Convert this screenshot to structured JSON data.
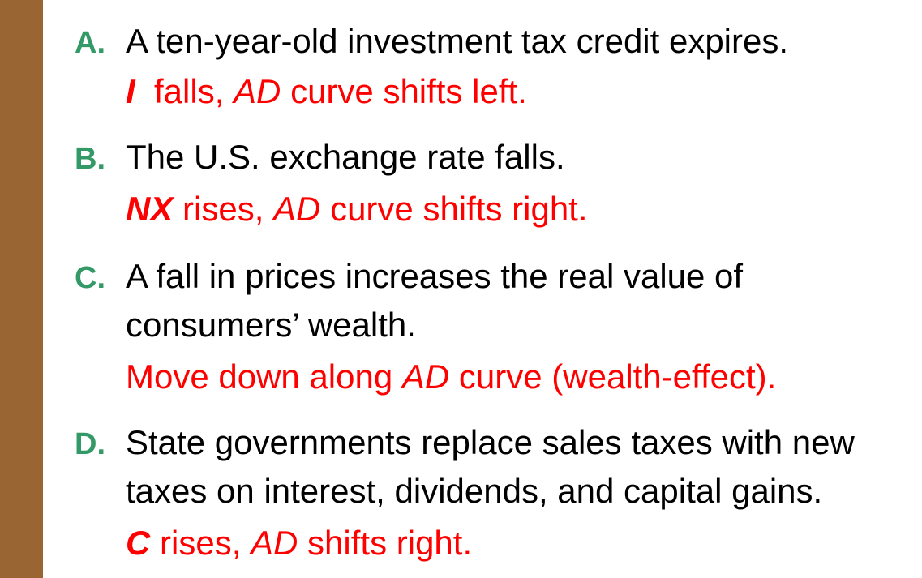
{
  "colors": {
    "accent_bar": "#996633",
    "letter": "#339966",
    "question": "#000000",
    "answer": "#ff0000"
  },
  "items": [
    {
      "letter": "A.",
      "question": [
        "A ten-year-old investment tax credit expires."
      ],
      "answer": {
        "var": "I",
        "p1": "  falls, ",
        "ad": "AD",
        "p2": " curve shifts left."
      }
    },
    {
      "letter": "B.",
      "question": [
        "The U.S. exchange rate falls."
      ],
      "answer": {
        "var": "NX",
        "p1": " rises, ",
        "ad": "AD",
        "p2": " curve shifts right."
      }
    },
    {
      "letter": "C.",
      "question": [
        "A fall in prices increases the real value of",
        "consumers’ wealth."
      ],
      "answer": {
        "p1": "Move down along ",
        "ad": "AD",
        "p2": " curve (wealth-effect)."
      }
    },
    {
      "letter": "D.",
      "question": [
        "State governments replace sales taxes with new",
        "taxes on interest, dividends, and capital gains."
      ],
      "answer": {
        "var": "C",
        "p1": " rises, ",
        "ad": "AD",
        "p2": " shifts right."
      }
    }
  ]
}
